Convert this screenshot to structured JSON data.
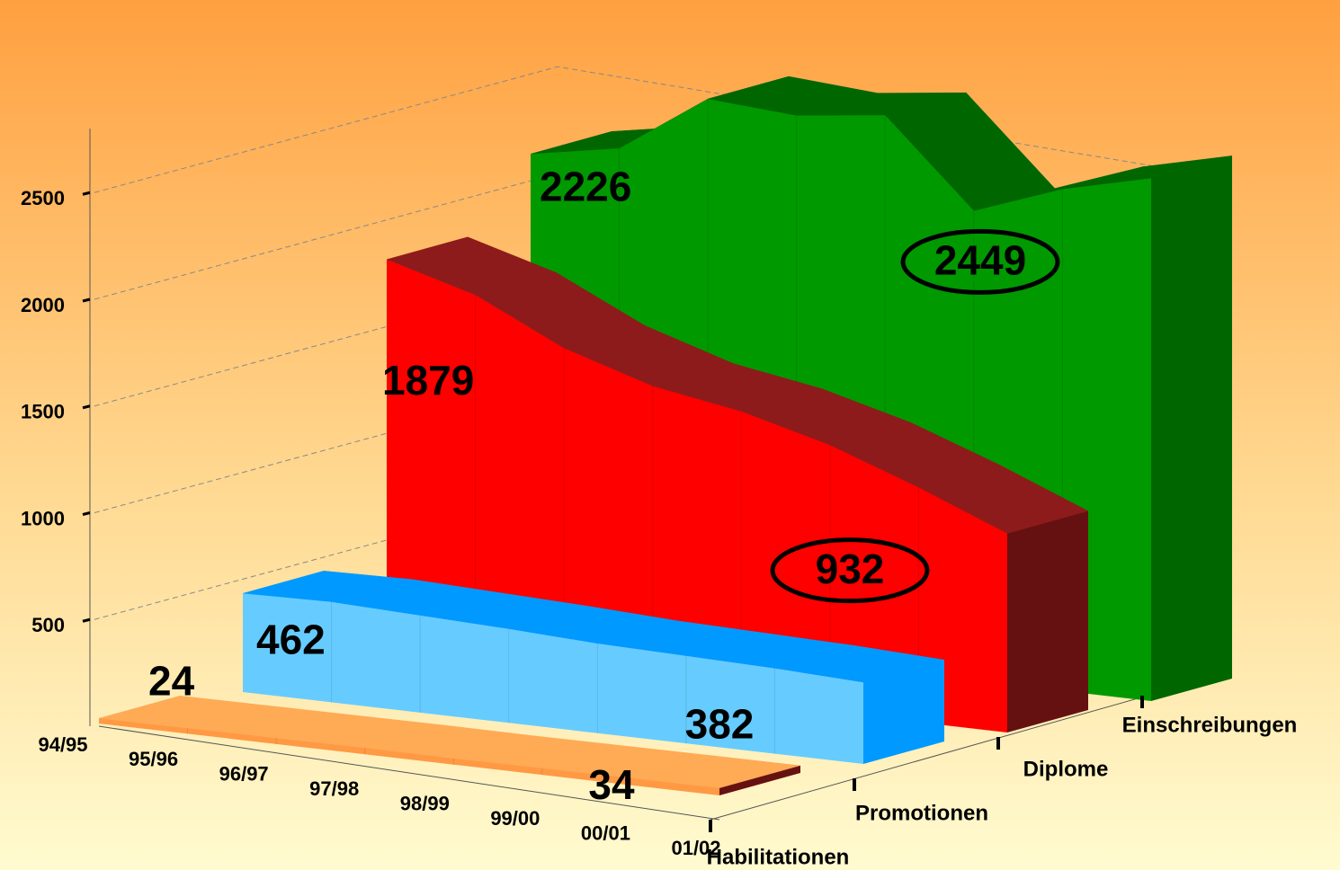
{
  "chart_data": {
    "type": "area3d",
    "categories": [
      "94/95",
      "95/96",
      "96/97",
      "97/98",
      "98/99",
      "99/00",
      "00/01",
      "01/02"
    ],
    "series": [
      {
        "name": "Habilitationen",
        "color": "#ff9944",
        "top_color": "#ffaa55",
        "side_color": "#661111",
        "values": [
          24,
          26,
          28,
          30,
          29,
          31,
          33,
          34
        ],
        "circle_last": false
      },
      {
        "name": "Promotionen",
        "color": "#66ccff",
        "top_color": "#0099ff",
        "side_color": "#0099ff",
        "values": [
          462,
          470,
          455,
          440,
          420,
          410,
          400,
          382
        ],
        "circle_last": false
      },
      {
        "name": "Diplome",
        "color": "#ff0000",
        "top_color": "#8e1b1b",
        "side_color": "#661111",
        "values": [
          1879,
          1760,
          1560,
          1430,
          1360,
          1250,
          1100,
          932
        ],
        "circle_last": true
      },
      {
        "name": "Einschreibungen",
        "color": "#009900",
        "top_color": "#006600",
        "side_color": "#006600",
        "values": [
          2226,
          2300,
          2580,
          2550,
          2600,
          2200,
          2350,
          2449
        ],
        "circle_last": true
      }
    ],
    "ylim": [
      0,
      2800
    ],
    "yticks": [
      500,
      1000,
      1500,
      2000,
      2500
    ],
    "grid": true
  }
}
